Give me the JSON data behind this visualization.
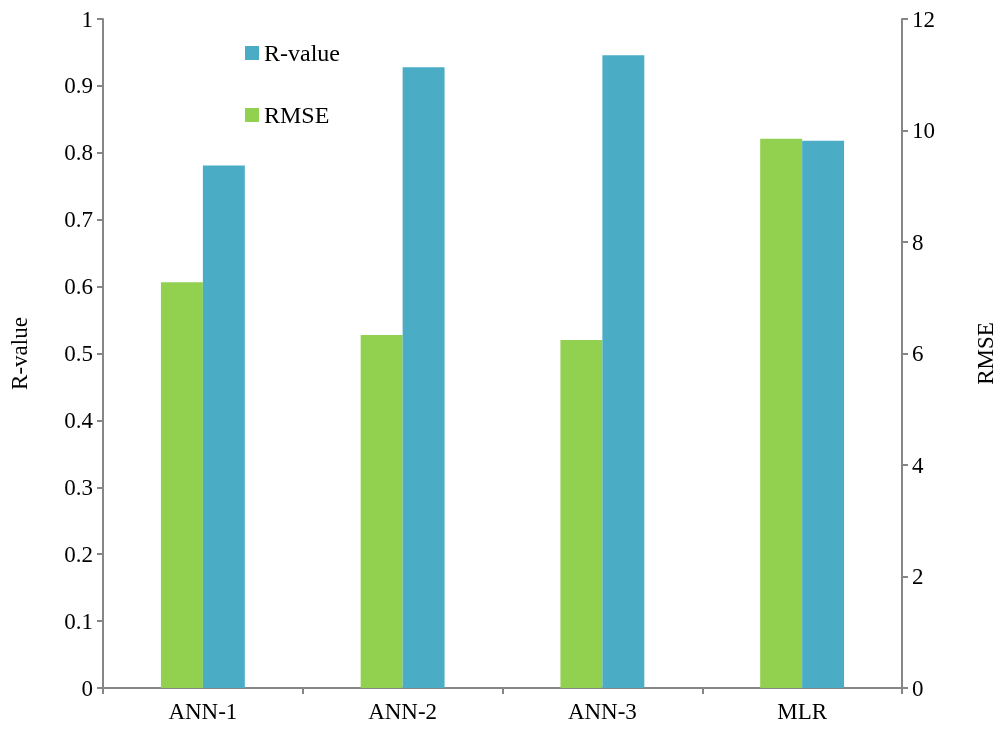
{
  "chart_data": {
    "type": "bar",
    "categories": [
      "ANN-1",
      "ANN-2",
      "ANN-3",
      "MLR"
    ],
    "series": [
      {
        "name": "R-value",
        "color": "#4bacc6",
        "values": [
          0.781,
          0.928,
          0.946,
          0.818
        ]
      },
      {
        "name": "RMSE",
        "color": "#92d050",
        "axis": "y2",
        "values": [
          7.28,
          6.33,
          6.24,
          9.85
        ]
      }
    ],
    "ylabel": "R-value",
    "y2label": "RMSE",
    "ylim": [
      0,
      1
    ],
    "yticks": [
      0,
      0.1,
      0.2,
      0.3,
      0.4,
      0.5,
      0.6,
      0.7,
      0.8,
      0.9,
      1
    ],
    "y2lim": [
      0,
      12
    ],
    "y2ticks": [
      0,
      2,
      4,
      6,
      8,
      10,
      12
    ],
    "grid": false,
    "legend": "top left"
  }
}
